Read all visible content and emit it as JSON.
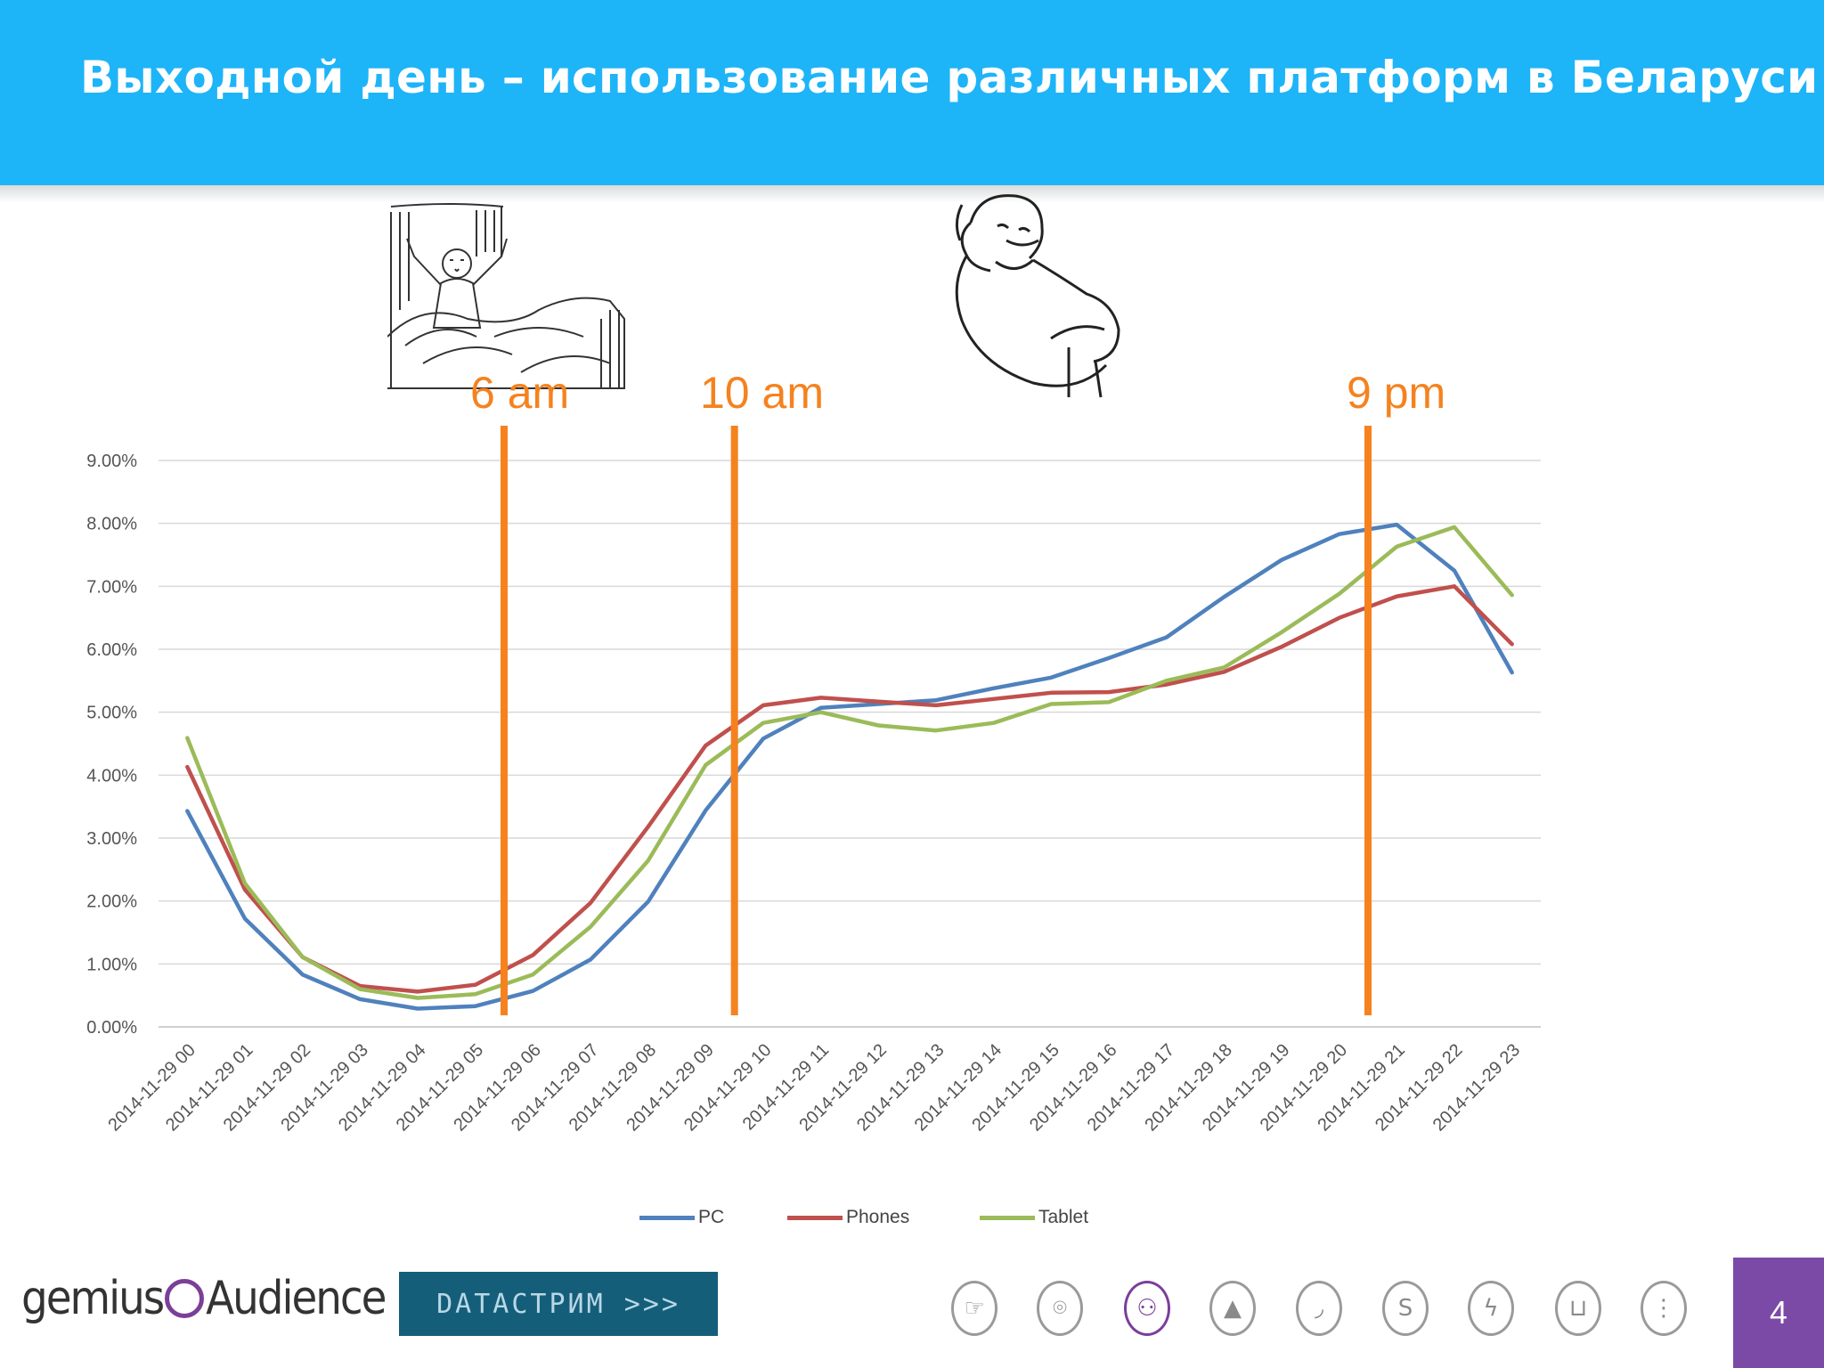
{
  "slide": {
    "title": "Выходной день – использование различных платформ в Беларуси",
    "page_number": "4"
  },
  "markers": [
    {
      "label": "6 am",
      "at": "2014-11-29 06"
    },
    {
      "label": "10 am",
      "at": "2014-11-29 10"
    },
    {
      "label": "9 pm",
      "at": "2014-11-29 21"
    }
  ],
  "chart_data": {
    "type": "line",
    "x": [
      "2014-11-29 00",
      "2014-11-29 01",
      "2014-11-29 02",
      "2014-11-29 03",
      "2014-11-29 04",
      "2014-11-29 05",
      "2014-11-29 06",
      "2014-11-29 07",
      "2014-11-29 08",
      "2014-11-29 09",
      "2014-11-29 10",
      "2014-11-29 11",
      "2014-11-29 12",
      "2014-11-29 13",
      "2014-11-29 14",
      "2014-11-29 15",
      "2014-11-29 16",
      "2014-11-29 17",
      "2014-11-29 18",
      "2014-11-29 19",
      "2014-11-29 20",
      "2014-11-29 21",
      "2014-11-29 22",
      "2014-11-29 23"
    ],
    "series": [
      {
        "name": "PC",
        "color": "#4f81bd",
        "values": [
          3.43,
          1.72,
          0.83,
          0.44,
          0.29,
          0.33,
          0.57,
          1.07,
          1.99,
          3.44,
          4.58,
          5.07,
          5.13,
          5.19,
          5.38,
          5.55,
          5.86,
          6.19,
          6.83,
          7.42,
          7.83,
          7.98,
          7.25,
          5.63
        ]
      },
      {
        "name": "Phones",
        "color": "#c0504d",
        "values": [
          4.13,
          2.18,
          1.11,
          0.65,
          0.56,
          0.67,
          1.14,
          1.97,
          3.18,
          4.47,
          5.11,
          5.23,
          5.17,
          5.11,
          5.21,
          5.31,
          5.32,
          5.44,
          5.64,
          6.04,
          6.5,
          6.84,
          7.0,
          6.08
        ]
      },
      {
        "name": "Tablet",
        "color": "#9bbb59",
        "values": [
          4.59,
          2.28,
          1.11,
          0.6,
          0.46,
          0.52,
          0.83,
          1.59,
          2.64,
          4.16,
          4.83,
          5.0,
          4.79,
          4.71,
          4.83,
          5.13,
          5.16,
          5.5,
          5.71,
          6.27,
          6.88,
          7.63,
          7.94,
          6.86
        ]
      }
    ],
    "yticks": [
      "9.00%",
      "8.00%",
      "7.00%",
      "6.00%",
      "5.00%",
      "4.00%",
      "3.00%",
      "2.00%",
      "1.00%",
      "0.00%"
    ],
    "ylim": [
      0,
      9
    ],
    "grid": true,
    "legend_position": "bottom"
  },
  "footer": {
    "brand_left": "gemius",
    "brand_right": "Audience",
    "datastream_label": "DATACTPИM >>>",
    "nav_icons": [
      "pointer-icon",
      "location-pin-icon",
      "audience-icon",
      "pyramid-icon",
      "wifi-signal-icon",
      "s-curve-icon",
      "lightning-icon",
      "cart-icon",
      "traffic-light-icon"
    ]
  }
}
